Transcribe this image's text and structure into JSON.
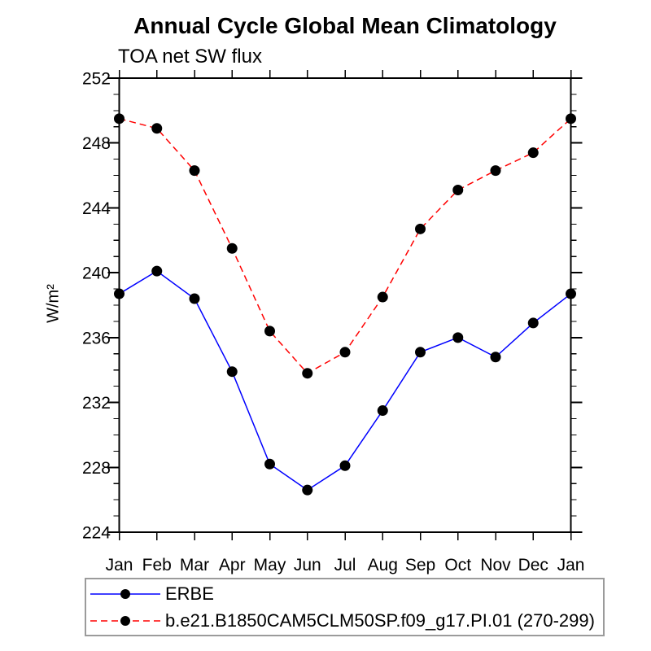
{
  "header": {
    "title": "Annual Cycle Global Mean Climatology",
    "subtitle": "TOA net SW flux"
  },
  "chart_data": {
    "type": "line",
    "title": "Annual Cycle Global Mean Climatology",
    "subtitle": "TOA net SW flux",
    "xlabel": "",
    "ylabel": "W/m²",
    "categories": [
      "Jan",
      "Feb",
      "Mar",
      "Apr",
      "May",
      "Jun",
      "Jul",
      "Aug",
      "Sep",
      "Oct",
      "Nov",
      "Dec",
      "Jan"
    ],
    "y_axis": {
      "min": 224,
      "max": 252,
      "major_step": 4,
      "minor_step": 1,
      "major_tick_labels": [
        "224",
        "228",
        "232",
        "236",
        "240",
        "244",
        "248",
        "252"
      ]
    },
    "grid": "off",
    "legend_position": "bottom",
    "marker_color": "#000000",
    "axis_color": "#000000",
    "legend_border_color": "#9b9b9b",
    "series": [
      {
        "name": "ERBE",
        "color": "#0000ff",
        "line_style": "solid",
        "values": [
          238.7,
          240.1,
          238.4,
          233.9,
          228.2,
          226.6,
          228.1,
          231.5,
          235.1,
          236.0,
          234.8,
          236.9,
          238.7
        ]
      },
      {
        "name": "b.e21.B1850CAM5CLM50SP.f09_g17.PI.01 (270-299)",
        "color": "#ff0000",
        "line_style": "dashed",
        "values": [
          249.5,
          248.9,
          246.3,
          241.5,
          236.4,
          233.8,
          235.1,
          238.5,
          242.7,
          245.1,
          246.3,
          247.4,
          249.5
        ]
      }
    ]
  }
}
